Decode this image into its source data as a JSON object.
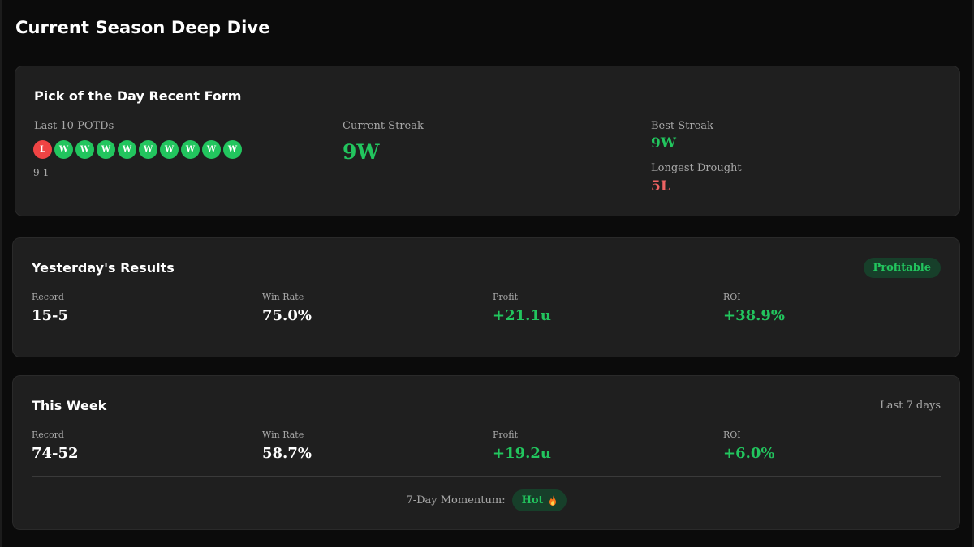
{
  "page": {
    "title": "Current Season Deep Dive"
  },
  "potd": {
    "title": "Pick of the Day Recent Form",
    "last10_label": "Last 10 POTDs",
    "results": [
      "L",
      "W",
      "W",
      "W",
      "W",
      "W",
      "W",
      "W",
      "W",
      "W"
    ],
    "record": "9-1",
    "current_streak_label": "Current Streak",
    "current_streak": "9W",
    "best_streak_label": "Best Streak",
    "best_streak": "9W",
    "longest_drought_label": "Longest Drought",
    "longest_drought": "5L"
  },
  "yesterday": {
    "title": "Yesterday's Results",
    "badge": "Profitable",
    "stats": [
      {
        "label": "Record",
        "value": "15-5"
      },
      {
        "label": "Win Rate",
        "value": "75.0%"
      },
      {
        "label": "Profit",
        "value": "+21.1u"
      },
      {
        "label": "ROI",
        "value": "+38.9%"
      }
    ]
  },
  "week": {
    "title": "This Week",
    "range": "Last 7 days",
    "stats": [
      {
        "label": "Record",
        "value": "74-52"
      },
      {
        "label": "Win Rate",
        "value": "58.7%"
      },
      {
        "label": "Profit",
        "value": "+19.2u"
      },
      {
        "label": "ROI",
        "value": "+6.0%"
      }
    ],
    "momentum_label": "7-Day Momentum:",
    "momentum_value": "Hot",
    "momentum_icon": "flame-icon"
  },
  "colors": {
    "win": "#22c55e",
    "loss": "#ef4444",
    "card": "#1f1f1f",
    "background": "#0b0b0b"
  }
}
